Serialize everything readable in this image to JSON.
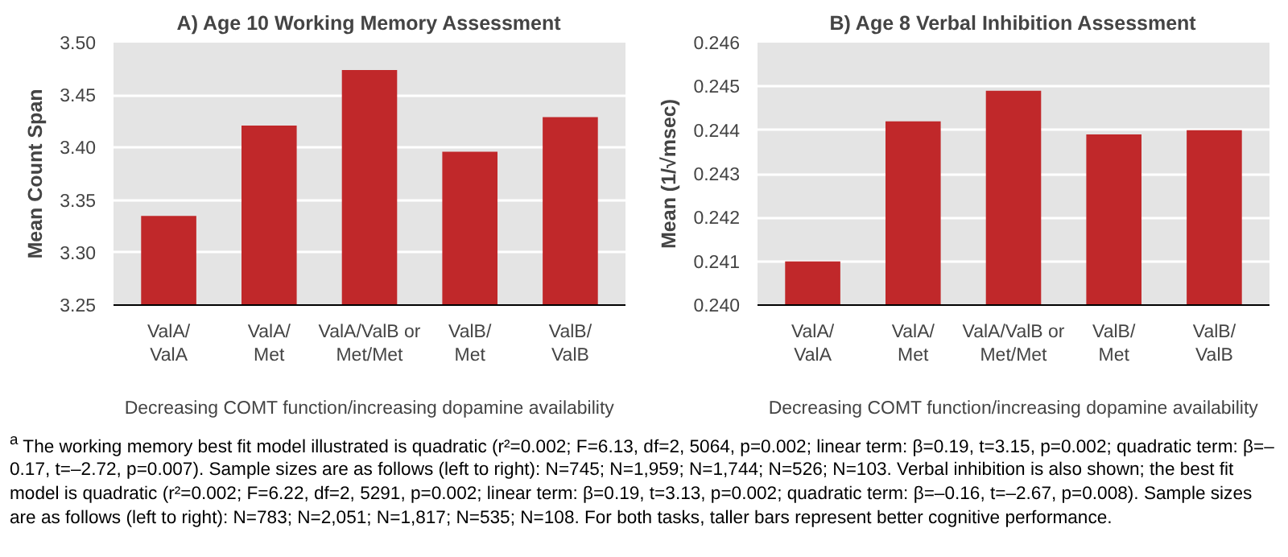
{
  "chart_data": [
    {
      "type": "bar",
      "title": "A) Age 10 Working Memory Assessment",
      "ylabel": "Mean Count Span",
      "xlabel": "Decreasing COMT function/increasing dopamine availability",
      "categories": [
        "ValA/\nValA",
        "ValA/\nMet",
        "ValA/ValB or\nMet/Met",
        "ValB/\nMet",
        "ValB/\nValB"
      ],
      "values": [
        3.335,
        3.421,
        3.474,
        3.396,
        3.429
      ],
      "color": "#c0282a",
      "ylim": [
        3.25,
        3.5
      ],
      "yticks": [
        3.25,
        {
          "value": 3.3,
          "label": "3.30"
        },
        3.35,
        {
          "value": 3.4,
          "label": "3.40"
        },
        3.45,
        {
          "value": 3.5,
          "label": "3.50"
        }
      ],
      "grid": "y",
      "annotations": [
        "$^{a}$ The working memory best fit model illustrated is quadratic (r²=0.002; F=6.13, df=2, 5064, p=0.002; linear term: β=0.19, t=3.15, p=0.002; quadratic term: β=–0.17, t=–2.72, p=0.007). Sample sizes are as follows (left to right): N=745; N=1,959; N=1,744; N=526; N=103. Verbal inhibition is also shown; the best fit model is quadratic (r²=0.002; F=6.22, df=2, 5291, p=0.002; linear term: β=0.19, t=3.13, p=0.002; quadratic term: β=–0.16, t=–2.67, p=0.008). Sample sizes are as follows (left to right): N=783; N=2,051; N=1,817; N=535; N=108. For both tasks, taller bars represent better cognitive performance."
      ]
    },
    {
      "type": "bar",
      "title": "B) Age 8 Verbal Inhibition Assessment",
      "ylabel": "Mean (1/√msec)",
      "xlabel": "Decreasing COMT function/increasing dopamine availability",
      "categories": [
        "ValA/\nValA",
        "ValA/\nMet",
        "ValA/ValB or\nMet/Met",
        "ValB/\nMet",
        "ValB/\nValB"
      ],
      "values": [
        0.241,
        0.2442,
        0.2449,
        0.2439,
        0.244
      ],
      "color": "#c0282a",
      "ylim": [
        0.24,
        0.246
      ],
      "yticks": [
        {
          "value": 0.24,
          "label": "0.240"
        },
        0.241,
        0.242,
        0.243,
        0.244,
        0.245,
        0.246
      ],
      "grid": "y"
    }
  ]
}
